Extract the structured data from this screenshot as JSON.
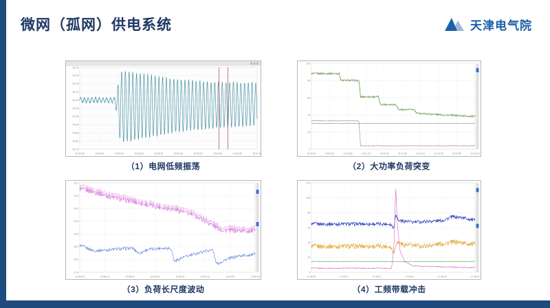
{
  "slide": {
    "title": "微网（孤网）供电系统",
    "logo_text": "天津电气院",
    "accent_color": "#1e4a7d",
    "title_color": "#1f3864",
    "logo_color": "#1a61a8",
    "logo_light_color": "#9db9d6"
  },
  "captions": [
    "（1）电网低频振荡",
    "（2）大功率负荷突变",
    "（3）负荷长尺度波动",
    "（4）工频带载冲击"
  ],
  "chart_data": [
    {
      "id": "grid-low-freq-oscillation",
      "type": "line",
      "title": "电网低频振荡",
      "frame": {
        "toolbar": true,
        "plot_bg": "#fdfdfd"
      },
      "ylabel": "频率(Hz)",
      "yticks": [
        "50.25",
        "50.20",
        "50.15",
        "50.10",
        "50.05",
        "50.00",
        "49.95",
        "49.90",
        "49.85",
        "49.80",
        "49.75"
      ],
      "xticks": [
        "15:05:30",
        "15:05:40",
        "15:05:50",
        "15:06:00",
        "15:06:10",
        "15:06:20",
        "15:06:30",
        "15:06:40",
        "15:06:50",
        "15:07:00"
      ],
      "cursors": [
        0.785,
        0.835
      ],
      "series": [
        {
          "name": "电网频率",
          "color": "#4a93a8",
          "width": 0.7,
          "kind": "osc",
          "centers": [
            [
              0,
              0.6
            ],
            [
              0.2,
              0.6
            ],
            [
              0.22,
              0.52
            ],
            [
              1,
              0.55
            ]
          ],
          "amps": [
            [
              0,
              0.025
            ],
            [
              0.2,
              0.03
            ],
            [
              0.23,
              0.44
            ],
            [
              0.35,
              0.4
            ],
            [
              0.55,
              0.32
            ],
            [
              0.75,
              0.28
            ],
            [
              1,
              0.26
            ]
          ],
          "period": 0.021,
          "noise": 0.012
        }
      ]
    },
    {
      "id": "high-power-load-step",
      "type": "line",
      "title": "大功率负荷突变",
      "frame": {
        "toolbar": false,
        "plot_bg": "#ffffff"
      },
      "yticks": [
        "100",
        "80",
        "60",
        "40",
        "20",
        "0"
      ],
      "xticks": [
        "14:20:10",
        "14:20:30",
        "14:20:50",
        "14:21:10",
        "14:21:30",
        "14:21:50",
        "14:22:10",
        "14:22:30",
        "14:22:50",
        "14:23:10"
      ],
      "legend_marks": [
        0.06
      ],
      "series": [
        {
          "name": "负荷功率",
          "color": "#79a25c",
          "width": 0.9,
          "kind": "line",
          "noise": 0.01,
          "points": [
            [
              0,
              0.88
            ],
            [
              0.17,
              0.88
            ],
            [
              0.18,
              0.8
            ],
            [
              0.29,
              0.8
            ],
            [
              0.3,
              0.61
            ],
            [
              0.41,
              0.61
            ],
            [
              0.42,
              0.52
            ],
            [
              0.52,
              0.52
            ],
            [
              0.53,
              0.46
            ],
            [
              0.63,
              0.46
            ],
            [
              0.64,
              0.42
            ],
            [
              0.8,
              0.4
            ],
            [
              1,
              0.38
            ]
          ]
        },
        {
          "name": "基准线",
          "color": "#9a9a9a",
          "width": 0.7,
          "kind": "line",
          "noise": 0,
          "points": [
            [
              0,
              0.3
            ],
            [
              1,
              0.3
            ]
          ]
        },
        {
          "name": "支路电流",
          "color": "#b0788a",
          "width": 0.6,
          "kind": "line",
          "noise": 0.004,
          "points": [
            [
              0,
              0.33
            ],
            [
              0.29,
              0.33
            ],
            [
              0.3,
              0.04
            ],
            [
              1,
              0.04
            ]
          ]
        }
      ]
    },
    {
      "id": "long-scale-load-fluctuation",
      "type": "line",
      "title": "负荷长尺度波动",
      "frame": {
        "toolbar": false,
        "plot_bg": "#ffffff"
      },
      "yticks": [
        "41.0",
        "40.5",
        "40.0",
        "39.5",
        "39.0",
        "38.5",
        "38.0",
        "37.5"
      ],
      "xticks": [
        "10:58:03",
        "10:58:23",
        "10:58:43",
        "10:59:03",
        "10:59:23",
        "10:59:43",
        "11:00:03",
        "11:00:23"
      ],
      "legend_marks": [
        0.08,
        0.46
      ],
      "series": [
        {
          "name": "负荷曲线A",
          "color": "#d678d6",
          "width": 0.7,
          "kind": "line",
          "noise": 0.028,
          "points": [
            [
              0,
              0.93
            ],
            [
              0.08,
              0.9
            ],
            [
              0.18,
              0.84
            ],
            [
              0.3,
              0.79
            ],
            [
              0.42,
              0.74
            ],
            [
              0.55,
              0.7
            ],
            [
              0.65,
              0.64
            ],
            [
              0.72,
              0.57
            ],
            [
              0.78,
              0.5
            ],
            [
              0.82,
              0.47
            ],
            [
              1,
              0.46
            ]
          ]
        },
        {
          "name": "负荷曲线B",
          "color": "#e9a9e9",
          "width": 0.6,
          "kind": "line",
          "noise": 0.03,
          "points": [
            [
              0,
              0.96
            ],
            [
              0.08,
              0.93
            ],
            [
              0.18,
              0.87
            ],
            [
              0.3,
              0.82
            ],
            [
              0.42,
              0.77
            ],
            [
              0.55,
              0.73
            ],
            [
              0.65,
              0.67
            ],
            [
              0.72,
              0.6
            ],
            [
              0.78,
              0.53
            ],
            [
              0.82,
              0.5
            ],
            [
              1,
              0.49
            ]
          ]
        },
        {
          "name": "负荷曲线C",
          "color": "#5577dd",
          "width": 0.6,
          "kind": "line",
          "noise": 0.018,
          "points": [
            [
              0,
              0.3
            ],
            [
              0.04,
              0.27
            ],
            [
              0.08,
              0.24
            ],
            [
              0.15,
              0.25
            ],
            [
              0.22,
              0.26
            ],
            [
              0.3,
              0.27
            ],
            [
              0.34,
              0.21
            ],
            [
              0.38,
              0.25
            ],
            [
              0.46,
              0.27
            ],
            [
              0.52,
              0.27
            ],
            [
              0.54,
              0.12
            ],
            [
              0.58,
              0.16
            ],
            [
              0.65,
              0.2
            ],
            [
              0.72,
              0.24
            ],
            [
              0.76,
              0.25
            ],
            [
              0.78,
              0.09
            ],
            [
              0.83,
              0.14
            ],
            [
              0.9,
              0.18
            ],
            [
              1,
              0.2
            ]
          ]
        }
      ]
    },
    {
      "id": "power-frequency-load-impact",
      "type": "line",
      "title": "工频带载冲击",
      "frame": {
        "toolbar": false,
        "plot_bg": "#ffffff"
      },
      "yticks": [
        "120",
        "100",
        "80",
        "60",
        "40",
        "20",
        "0"
      ],
      "xticks": [
        "17:46:07",
        "17:46:17",
        "17:46:27",
        "17:46:37",
        "17:46:47",
        "17:46:57"
      ],
      "legend_marks": [
        0.06,
        0.48
      ],
      "series": [
        {
          "name": "电压",
          "color": "#2d3fbf",
          "width": 0.8,
          "kind": "line",
          "noise": 0.02,
          "points": [
            [
              0,
              0.54
            ],
            [
              0.48,
              0.54
            ],
            [
              0.505,
              0.5
            ],
            [
              0.515,
              0.66
            ],
            [
              0.53,
              0.58
            ],
            [
              0.62,
              0.56
            ],
            [
              0.72,
              0.57
            ],
            [
              0.8,
              0.58
            ],
            [
              0.86,
              0.62
            ],
            [
              0.93,
              0.61
            ],
            [
              1,
              0.58
            ]
          ]
        },
        {
          "name": "电流",
          "color": "#e2ab3a",
          "width": 0.8,
          "kind": "line",
          "noise": 0.028,
          "points": [
            [
              0,
              0.29
            ],
            [
              0.48,
              0.29
            ],
            [
              0.505,
              0.22
            ],
            [
              0.52,
              0.34
            ],
            [
              0.56,
              0.31
            ],
            [
              0.68,
              0.29
            ],
            [
              0.8,
              0.32
            ],
            [
              0.88,
              0.34
            ],
            [
              1,
              0.31
            ]
          ]
        },
        {
          "name": "冲击量",
          "color": "#d85fc0",
          "width": 0.6,
          "kind": "line",
          "noise": 0.006,
          "points": [
            [
              0,
              0.045
            ],
            [
              0.49,
              0.045
            ],
            [
              0.505,
              0.3
            ],
            [
              0.515,
              0.96
            ],
            [
              0.525,
              0.55
            ],
            [
              0.54,
              0.25
            ],
            [
              0.57,
              0.12
            ],
            [
              0.62,
              0.07
            ],
            [
              1,
              0.05
            ]
          ]
        },
        {
          "name": "基线",
          "color": "#57a55a",
          "width": 0.6,
          "kind": "line",
          "noise": 0.004,
          "points": [
            [
              0,
              0.12
            ],
            [
              1,
              0.12
            ]
          ]
        }
      ]
    }
  ]
}
